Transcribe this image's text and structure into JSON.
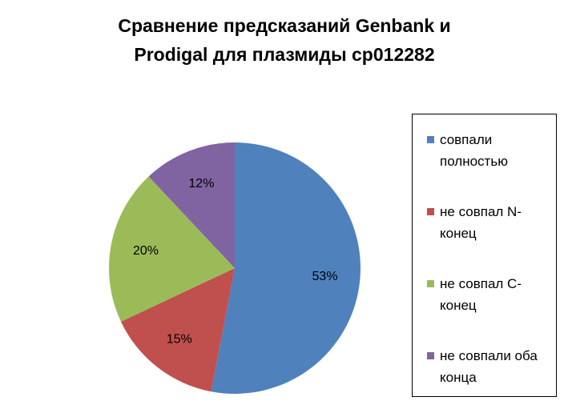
{
  "chart_data": {
    "type": "pie",
    "title": "Сравнение предсказаний Genbank и Prodigal для плазмиды cp012282",
    "categories": [
      "совпали полностью",
      "не совпал N-конец",
      "не совпал С-конец",
      "не совпали оба конца"
    ],
    "values": [
      53,
      15,
      20,
      12
    ],
    "value_labels": [
      "53%",
      "15%",
      "20%",
      "12%"
    ],
    "colors": [
      "#4f81bd",
      "#c0504d",
      "#9bbb59",
      "#8064a2"
    ],
    "legend": "right"
  }
}
